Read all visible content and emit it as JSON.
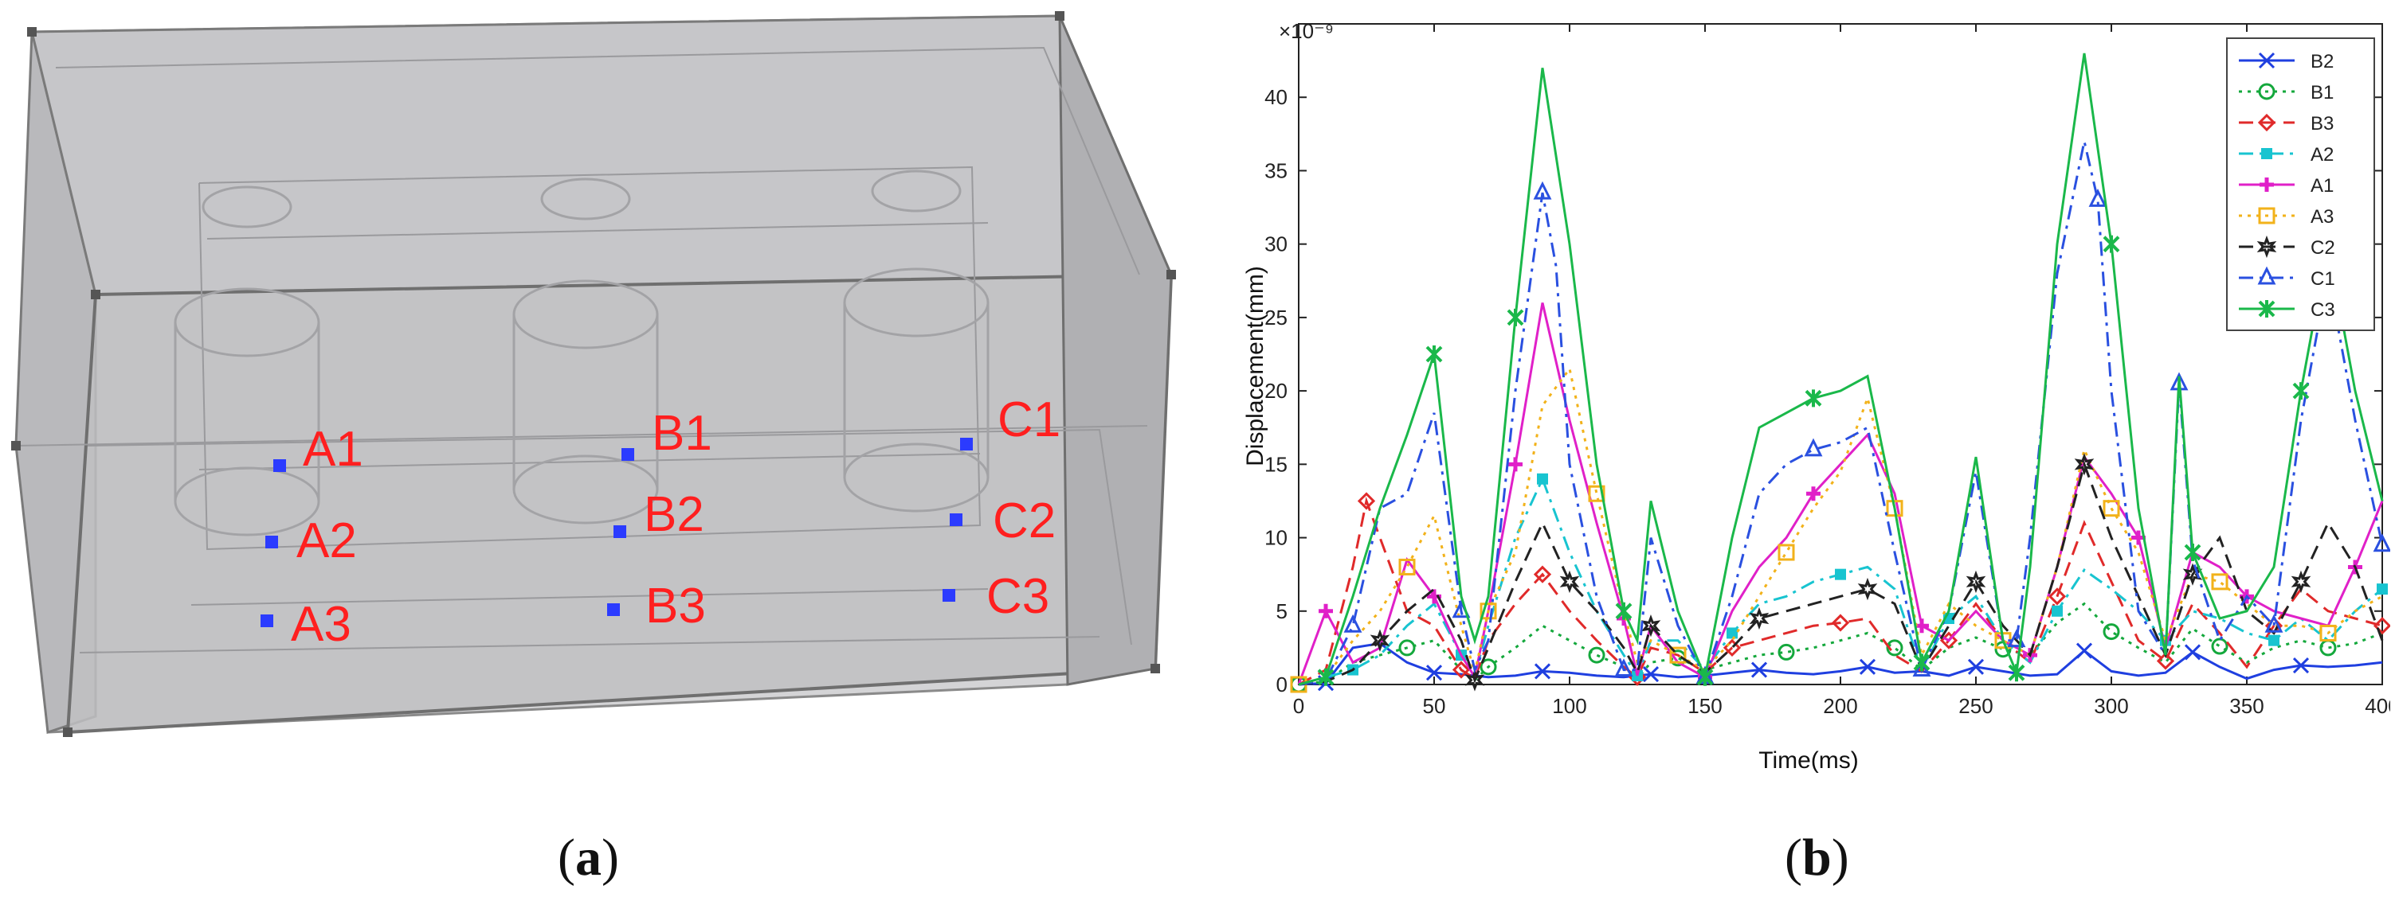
{
  "panel_a": {
    "caption": "a",
    "points": [
      {
        "label": "A1"
      },
      {
        "label": "A2"
      },
      {
        "label": "A3"
      },
      {
        "label": "B1"
      },
      {
        "label": "B2"
      },
      {
        "label": "B3"
      },
      {
        "label": "C1"
      },
      {
        "label": "C2"
      },
      {
        "label": "C3"
      }
    ],
    "colors": {
      "label": "#ff1f1f",
      "marker": "#2b3bff",
      "box_fill": "#c9c9cc"
    }
  },
  "panel_b": {
    "caption": "b",
    "exponent": "×10⁻⁹",
    "chart_data": {
      "type": "line",
      "xlabel": "Time(ms)",
      "ylabel": "Displacement(mm)",
      "xlim": [
        0,
        400
      ],
      "ylim": [
        0,
        45
      ],
      "xticks": [
        0,
        50,
        100,
        150,
        200,
        250,
        300,
        350,
        400
      ],
      "yticks": [
        0,
        5,
        10,
        15,
        20,
        25,
        30,
        35,
        40
      ],
      "grid": false,
      "legend_position": "top-right",
      "series": [
        {
          "name": "B2",
          "color": "#1f3fe0",
          "marker": "x",
          "dash": "solid",
          "x": [
            0,
            10,
            20,
            30,
            40,
            50,
            60,
            70,
            80,
            90,
            100,
            110,
            120,
            130,
            140,
            150,
            160,
            170,
            180,
            190,
            200,
            210,
            220,
            230,
            240,
            250,
            260,
            270,
            280,
            290,
            300,
            310,
            320,
            330,
            340,
            350,
            360,
            370,
            380,
            390,
            400
          ],
          "y": [
            0,
            0.1,
            2.5,
            2.8,
            1.5,
            0.8,
            0.7,
            0.5,
            0.6,
            0.9,
            0.8,
            0.6,
            0.5,
            0.7,
            0.5,
            0.6,
            0.8,
            1.0,
            0.8,
            0.7,
            0.9,
            1.2,
            0.8,
            0.9,
            0.6,
            1.2,
            0.9,
            0.6,
            0.7,
            2.3,
            0.9,
            0.6,
            0.8,
            2.2,
            1.2,
            0.4,
            1.0,
            1.3,
            1.2,
            1.3,
            1.5
          ]
        },
        {
          "name": "B1",
          "color": "#14a83c",
          "marker": "o",
          "dash": "dotted",
          "x": [
            0,
            10,
            20,
            30,
            40,
            50,
            60,
            65,
            70,
            80,
            90,
            100,
            110,
            120,
            125,
            130,
            140,
            150,
            160,
            170,
            180,
            190,
            200,
            210,
            220,
            230,
            240,
            250,
            260,
            270,
            280,
            290,
            300,
            310,
            320,
            330,
            340,
            350,
            360,
            370,
            380,
            390,
            400
          ],
          "y": [
            0,
            0.2,
            1.5,
            2.0,
            2.5,
            3.0,
            1.0,
            0.3,
            1.2,
            2.5,
            4.0,
            3.0,
            2.0,
            1.2,
            0.4,
            1.5,
            1.8,
            1.0,
            1.5,
            2.0,
            2.2,
            2.5,
            3.0,
            3.5,
            2.5,
            1.0,
            2.5,
            3.2,
            2.4,
            2.0,
            4.2,
            5.5,
            3.6,
            2.5,
            1.5,
            3.8,
            2.6,
            1.5,
            2.5,
            3.0,
            2.5,
            2.8,
            3.5
          ]
        },
        {
          "name": "B3",
          "color": "#e02a2a",
          "marker": "diamond",
          "dash": "dashed",
          "x": [
            0,
            10,
            20,
            25,
            30,
            40,
            50,
            60,
            65,
            70,
            80,
            90,
            100,
            110,
            120,
            125,
            130,
            140,
            150,
            160,
            170,
            180,
            190,
            200,
            210,
            220,
            230,
            240,
            250,
            260,
            270,
            280,
            290,
            300,
            310,
            320,
            330,
            340,
            350,
            360,
            370,
            380,
            390,
            400
          ],
          "y": [
            0,
            1.0,
            8.0,
            12.5,
            10.0,
            5.0,
            4.0,
            1.0,
            0.4,
            3.0,
            5.5,
            7.5,
            5.0,
            3.0,
            1.2,
            0.5,
            2.5,
            2.0,
            0.8,
            2.5,
            3.0,
            3.5,
            4.0,
            4.2,
            4.5,
            2.0,
            0.9,
            3.0,
            5.5,
            3.0,
            1.5,
            6.0,
            11.0,
            7.0,
            3.0,
            1.6,
            5.5,
            3.5,
            1.2,
            4.0,
            6.5,
            5.0,
            4.5,
            4.0
          ]
        },
        {
          "name": "A2",
          "color": "#18c4d0",
          "marker": "square",
          "dash": "dashdot",
          "x": [
            0,
            10,
            20,
            30,
            40,
            50,
            60,
            65,
            70,
            80,
            90,
            100,
            110,
            120,
            125,
            130,
            140,
            150,
            160,
            170,
            180,
            190,
            200,
            210,
            220,
            230,
            240,
            250,
            260,
            270,
            280,
            290,
            300,
            310,
            320,
            330,
            340,
            350,
            360,
            370,
            380,
            390,
            400
          ],
          "y": [
            0,
            0.5,
            1.0,
            2.0,
            4.0,
            5.5,
            2.0,
            0.6,
            4.0,
            10.0,
            14.0,
            9.0,
            5.0,
            2.0,
            0.6,
            3.0,
            3.0,
            1.0,
            3.5,
            5.5,
            6.0,
            7.0,
            7.5,
            8.0,
            6.5,
            1.0,
            4.5,
            6.0,
            3.0,
            1.5,
            5.0,
            7.8,
            6.5,
            5.0,
            3.0,
            5.0,
            4.5,
            3.5,
            3.0,
            4.5,
            3.0,
            5.0,
            6.5
          ]
        },
        {
          "name": "A1",
          "color": "#e020c8",
          "marker": "plus",
          "dash": "solid",
          "x": [
            0,
            10,
            20,
            30,
            40,
            50,
            60,
            65,
            70,
            80,
            90,
            100,
            110,
            120,
            125,
            130,
            140,
            150,
            160,
            170,
            180,
            190,
            200,
            210,
            220,
            230,
            240,
            250,
            260,
            270,
            280,
            290,
            300,
            310,
            320,
            330,
            340,
            350,
            360,
            370,
            380,
            390,
            400
          ],
          "y": [
            0,
            5.0,
            1.5,
            2.5,
            8.5,
            6.0,
            2.0,
            0.5,
            5.0,
            15.0,
            26.0,
            18.0,
            11.0,
            4.5,
            0.6,
            4.0,
            1.5,
            0.5,
            5.0,
            8.0,
            10.0,
            13.0,
            15.0,
            17.0,
            13.0,
            4.0,
            3.0,
            5.0,
            3.0,
            2.0,
            8.0,
            15.5,
            13.0,
            10.0,
            2.5,
            9.0,
            8.0,
            6.0,
            5.0,
            4.5,
            4.0,
            8.0,
            12.5
          ]
        },
        {
          "name": "A3",
          "color": "#f2b21a",
          "marker": "square-open",
          "dash": "dotted",
          "x": [
            0,
            10,
            20,
            30,
            40,
            50,
            60,
            65,
            70,
            80,
            90,
            100,
            110,
            120,
            125,
            130,
            140,
            150,
            160,
            170,
            180,
            190,
            200,
            210,
            220,
            230,
            240,
            250,
            260,
            270,
            280,
            290,
            300,
            310,
            320,
            330,
            340,
            350,
            360,
            370,
            380,
            390,
            400
          ],
          "y": [
            0,
            0.5,
            3.0,
            5.0,
            8.0,
            11.5,
            4.0,
            0.8,
            5.0,
            9.0,
            19.0,
            21.5,
            13.0,
            5.0,
            1.5,
            3.0,
            2.0,
            1.0,
            3.0,
            6.0,
            9.0,
            12.0,
            14.5,
            19.5,
            12.0,
            2.0,
            5.5,
            4.0,
            3.0,
            2.0,
            8.0,
            16.0,
            12.0,
            9.0,
            3.0,
            7.5,
            7.0,
            5.5,
            4.0,
            4.0,
            3.5,
            5.0,
            6.0
          ]
        },
        {
          "name": "C2",
          "color": "#222222",
          "marker": "star-open",
          "dash": "dashed",
          "x": [
            0,
            10,
            20,
            30,
            40,
            50,
            60,
            65,
            70,
            80,
            90,
            100,
            110,
            120,
            125,
            130,
            140,
            150,
            160,
            170,
            180,
            190,
            200,
            210,
            220,
            230,
            240,
            250,
            260,
            270,
            280,
            290,
            300,
            310,
            320,
            330,
            340,
            350,
            360,
            370,
            380,
            390,
            400
          ],
          "y": [
            0,
            0.2,
            1.0,
            3.0,
            5.0,
            6.5,
            3.0,
            0.3,
            2.5,
            7.0,
            11.0,
            7.0,
            5.0,
            2.5,
            0.8,
            4.0,
            2.0,
            0.8,
            2.5,
            4.5,
            5.0,
            5.5,
            6.0,
            6.5,
            5.5,
            1.0,
            4.0,
            7.0,
            4.0,
            2.0,
            8.0,
            15.0,
            10.0,
            6.0,
            2.0,
            7.5,
            10.0,
            5.0,
            3.5,
            7.0,
            11.0,
            8.0,
            3.0
          ]
        },
        {
          "name": "C1",
          "color": "#2a50e0",
          "marker": "triangle-open",
          "dash": "dashdot",
          "x": [
            0,
            10,
            20,
            30,
            40,
            50,
            60,
            65,
            70,
            80,
            90,
            95,
            100,
            110,
            120,
            125,
            130,
            140,
            150,
            160,
            170,
            180,
            190,
            200,
            210,
            220,
            230,
            240,
            250,
            260,
            265,
            270,
            280,
            290,
            295,
            300,
            310,
            320,
            325,
            330,
            340,
            350,
            360,
            370,
            380,
            390,
            400
          ],
          "y": [
            0,
            0.3,
            4.0,
            12.0,
            13.0,
            18.5,
            5.0,
            1.0,
            3.0,
            20.0,
            33.5,
            28.5,
            15.0,
            6.0,
            1.0,
            1.0,
            10.0,
            4.0,
            0.5,
            6.0,
            13.0,
            15.0,
            16.0,
            16.5,
            17.5,
            9.0,
            1.0,
            5.0,
            14.5,
            3.0,
            3.0,
            10.0,
            28.0,
            37.0,
            33.0,
            20.0,
            5.0,
            2.0,
            20.5,
            8.5,
            3.0,
            6.0,
            4.0,
            18.0,
            28.0,
            18.0,
            9.5
          ]
        },
        {
          "name": "C3",
          "color": "#1ab84a",
          "marker": "x-star",
          "dash": "solid",
          "x": [
            0,
            10,
            20,
            30,
            40,
            50,
            60,
            65,
            70,
            80,
            90,
            100,
            110,
            120,
            125,
            130,
            140,
            150,
            160,
            170,
            180,
            190,
            200,
            210,
            220,
            230,
            240,
            250,
            260,
            265,
            270,
            280,
            290,
            300,
            310,
            320,
            325,
            330,
            340,
            350,
            360,
            370,
            380,
            390,
            400
          ],
          "y": [
            0,
            0.5,
            6.0,
            12.0,
            17.0,
            22.5,
            6.0,
            3.0,
            6.0,
            25.0,
            42.0,
            30.0,
            15.0,
            5.0,
            3.0,
            12.5,
            5.0,
            0.5,
            10.0,
            17.5,
            18.5,
            19.5,
            20.0,
            21.0,
            12.0,
            1.5,
            5.0,
            15.5,
            3.0,
            0.8,
            8.0,
            30.0,
            43.0,
            30.0,
            12.0,
            2.0,
            21.0,
            9.0,
            4.5,
            5.0,
            8.0,
            20.0,
            30.0,
            20.0,
            12.5
          ]
        }
      ]
    }
  }
}
